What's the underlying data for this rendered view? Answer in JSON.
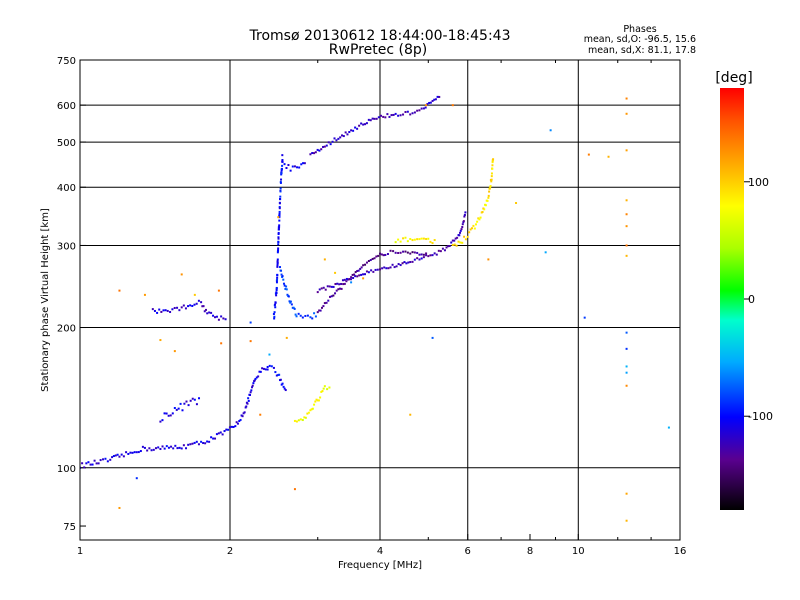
{
  "chart_data": {
    "type": "scatter",
    "title": "Tromsø 20130612 18:44:00-18:45:43",
    "subtitle": "RwPretec (8p)",
    "stats": {
      "header": "Phases",
      "o_line": "mean, sd,O: -96.5, 15.6",
      "x_line": "mean, sd,X:  81.1, 17.8"
    },
    "xlabel": "Frequency [MHz]",
    "ylabel": "Stationary phase Virtual Height [km]",
    "x_scale": "log",
    "y_scale": "log",
    "xlim": [
      1,
      16
    ],
    "ylim": [
      70,
      750
    ],
    "x_ticks": [
      {
        "v": 1,
        "label": "1"
      },
      {
        "v": 2,
        "label": "2"
      },
      {
        "v": 4,
        "label": "4"
      },
      {
        "v": 6,
        "label": "6"
      },
      {
        "v": 8,
        "label": "8"
      },
      {
        "v": 10,
        "label": "10"
      },
      {
        "v": 16,
        "label": "16"
      }
    ],
    "y_ticks": [
      {
        "v": 75,
        "label": "75"
      },
      {
        "v": 100,
        "label": "100"
      },
      {
        "v": 200,
        "label": "200"
      },
      {
        "v": 300,
        "label": "300"
      },
      {
        "v": 400,
        "label": "400"
      },
      {
        "v": 500,
        "label": "500"
      },
      {
        "v": 600,
        "label": "600"
      },
      {
        "v": 750,
        "label": "750"
      }
    ],
    "grid_x": [
      2,
      4,
      6,
      10
    ],
    "grid_y": [
      100,
      200,
      300,
      400,
      500,
      600
    ],
    "grid": true,
    "colorbar": {
      "title": "[deg]",
      "range": [
        -180,
        180
      ],
      "ticks": [
        {
          "v": 100,
          "label": "100"
        },
        {
          "v": 0,
          "label": "0"
        },
        {
          "v": -100,
          "label": "-100"
        }
      ]
    },
    "traces": [
      {
        "pts": [
          [
            1.0,
            101
          ],
          [
            1.05,
            102
          ],
          [
            1.1,
            103
          ],
          [
            1.15,
            104
          ],
          [
            1.2,
            106
          ],
          [
            1.25,
            107
          ],
          [
            1.3,
            109
          ],
          [
            1.35,
            110
          ],
          [
            1.45,
            110
          ],
          [
            1.6,
            111
          ],
          [
            1.75,
            113
          ],
          [
            1.85,
            116
          ],
          [
            1.95,
            119
          ],
          [
            2.05,
            123
          ],
          [
            2.1,
            128
          ],
          [
            2.15,
            134
          ],
          [
            2.2,
            145
          ],
          [
            2.25,
            155
          ],
          [
            2.32,
            162
          ],
          [
            2.4,
            165
          ]
        ],
        "deg": -110,
        "jitter": 0.012
      },
      {
        "pts": [
          [
            1.4,
            217
          ],
          [
            1.5,
            218
          ],
          [
            1.6,
            220
          ],
          [
            1.68,
            225
          ],
          [
            1.75,
            226
          ],
          [
            1.8,
            215
          ],
          [
            1.9,
            210
          ],
          [
            1.98,
            208
          ]
        ],
        "deg": -115,
        "jitter": 0.012
      },
      {
        "pts": [
          [
            1.45,
            128
          ],
          [
            1.55,
            133
          ],
          [
            1.62,
            136
          ],
          [
            1.7,
            139
          ],
          [
            1.75,
            140
          ]
        ],
        "deg": -110,
        "jitter": 0.02
      },
      {
        "pts": [
          [
            2.38,
            165
          ],
          [
            2.45,
            162
          ],
          [
            2.5,
            158
          ],
          [
            2.55,
            151
          ],
          [
            2.6,
            146
          ]
        ],
        "deg": -100,
        "jitter": 0.015
      },
      {
        "pts": [
          [
            2.45,
            210
          ],
          [
            2.48,
            240
          ],
          [
            2.5,
            300
          ],
          [
            2.52,
            380
          ],
          [
            2.55,
            470
          ]
        ],
        "deg": -100,
        "jitter": 0.02
      },
      {
        "pts": [
          [
            2.52,
            270
          ],
          [
            2.55,
            255
          ],
          [
            2.6,
            240
          ],
          [
            2.65,
            225
          ],
          [
            2.72,
            213
          ],
          [
            2.8,
            210
          ],
          [
            2.9,
            210
          ],
          [
            3.0,
            215
          ]
        ],
        "deg": -85,
        "jitter": 0.012
      },
      {
        "pts": [
          [
            2.55,
            450
          ],
          [
            2.62,
            440
          ],
          [
            2.7,
            438
          ],
          [
            2.78,
            442
          ],
          [
            2.85,
            450
          ]
        ],
        "deg": -110,
        "jitter": 0.015
      },
      {
        "pts": [
          [
            3.0,
            215
          ],
          [
            3.1,
            225
          ],
          [
            3.2,
            233
          ],
          [
            3.3,
            240
          ],
          [
            3.4,
            248
          ],
          [
            3.5,
            257
          ],
          [
            3.6,
            265
          ],
          [
            3.7,
            272
          ],
          [
            3.8,
            278
          ],
          [
            3.9,
            283
          ],
          [
            4.0,
            286
          ],
          [
            4.1,
            288
          ],
          [
            4.2,
            290
          ],
          [
            4.3,
            291
          ],
          [
            4.45,
            290
          ],
          [
            4.6,
            289
          ],
          [
            4.8,
            288
          ],
          [
            5.0,
            287
          ]
        ],
        "deg": -135,
        "jitter": 0.008
      },
      {
        "pts": [
          [
            3.0,
            240
          ],
          [
            3.2,
            245
          ],
          [
            3.4,
            252
          ],
          [
            3.6,
            258
          ],
          [
            3.8,
            263
          ],
          [
            4.0,
            267
          ],
          [
            4.2,
            270
          ],
          [
            4.4,
            273
          ],
          [
            4.6,
            277
          ],
          [
            4.8,
            281
          ],
          [
            5.0,
            285
          ],
          [
            5.2,
            289
          ],
          [
            5.4,
            295
          ],
          [
            5.6,
            305
          ],
          [
            5.75,
            315
          ],
          [
            5.85,
            330
          ],
          [
            5.95,
            355
          ]
        ],
        "deg": -125,
        "jitter": 0.008
      },
      {
        "pts": [
          [
            2.9,
            470
          ],
          [
            3.1,
            490
          ],
          [
            3.3,
            510
          ],
          [
            3.5,
            530
          ],
          [
            3.7,
            548
          ],
          [
            3.9,
            560
          ],
          [
            4.1,
            568
          ],
          [
            4.3,
            572
          ],
          [
            4.5,
            575
          ],
          [
            4.7,
            580
          ],
          [
            4.9,
            590
          ],
          [
            5.1,
            610
          ],
          [
            5.3,
            630
          ]
        ],
        "deg": -120,
        "jitter": 0.01
      },
      {
        "pts": [
          [
            4.3,
            305
          ],
          [
            4.45,
            308
          ],
          [
            4.6,
            310
          ],
          [
            4.8,
            310
          ],
          [
            5.0,
            308
          ],
          [
            5.2,
            305
          ]
        ],
        "deg": 80,
        "jitter": 0.01
      },
      {
        "pts": [
          [
            5.6,
            300
          ],
          [
            5.8,
            305
          ],
          [
            6.0,
            315
          ],
          [
            6.2,
            330
          ],
          [
            6.4,
            350
          ],
          [
            6.6,
            380
          ],
          [
            6.7,
            420
          ],
          [
            6.75,
            470
          ]
        ],
        "deg": 90,
        "jitter": 0.012
      },
      {
        "pts": [
          [
            2.7,
            125
          ],
          [
            2.8,
            127
          ],
          [
            2.9,
            132
          ],
          [
            3.0,
            140
          ],
          [
            3.1,
            148
          ],
          [
            3.2,
            150
          ]
        ],
        "deg": 75,
        "jitter": 0.015
      },
      {
        "pts": [
          [
            1.2,
            240
          ],
          [
            1.35,
            235
          ],
          [
            1.45,
            188
          ],
          [
            1.55,
            178
          ],
          [
            1.6,
            260
          ],
          [
            1.7,
            235
          ],
          [
            1.9,
            240
          ],
          [
            1.92,
            185
          ],
          [
            2.2,
            187
          ],
          [
            2.3,
            130
          ],
          [
            2.5,
            345
          ],
          [
            2.6,
            190
          ],
          [
            3.1,
            280
          ],
          [
            3.25,
            262
          ],
          [
            3.7,
            255
          ],
          [
            4.6,
            130
          ],
          [
            4.95,
            600
          ],
          [
            5.6,
            600
          ],
          [
            6.6,
            280
          ],
          [
            7.5,
            370
          ],
          [
            10.5,
            470
          ],
          [
            12.5,
            620
          ],
          [
            12.5,
            575
          ],
          [
            12.5,
            480
          ],
          [
            12.5,
            375
          ],
          [
            12.5,
            350
          ],
          [
            12.5,
            330
          ],
          [
            12.5,
            300
          ],
          [
            12.5,
            285
          ],
          [
            12.5,
            150
          ],
          [
            12.5,
            88
          ],
          [
            12.5,
            77
          ],
          [
            1.2,
            82
          ],
          [
            2.7,
            90
          ],
          [
            11.5,
            465
          ]
        ],
        "deg": 120,
        "jitter": 0.0,
        "sparse": true
      },
      {
        "pts": [
          [
            2.2,
            205
          ],
          [
            2.4,
            175
          ],
          [
            3.5,
            250
          ],
          [
            5.1,
            190
          ],
          [
            8.6,
            290
          ],
          [
            10.3,
            210
          ],
          [
            12.5,
            195
          ],
          [
            12.5,
            180
          ],
          [
            12.5,
            165
          ],
          [
            12.5,
            160
          ],
          [
            15.2,
            122
          ],
          [
            1.3,
            95
          ],
          [
            8.8,
            530
          ]
        ],
        "deg": -70,
        "jitter": 0.0,
        "sparse": true
      }
    ]
  }
}
